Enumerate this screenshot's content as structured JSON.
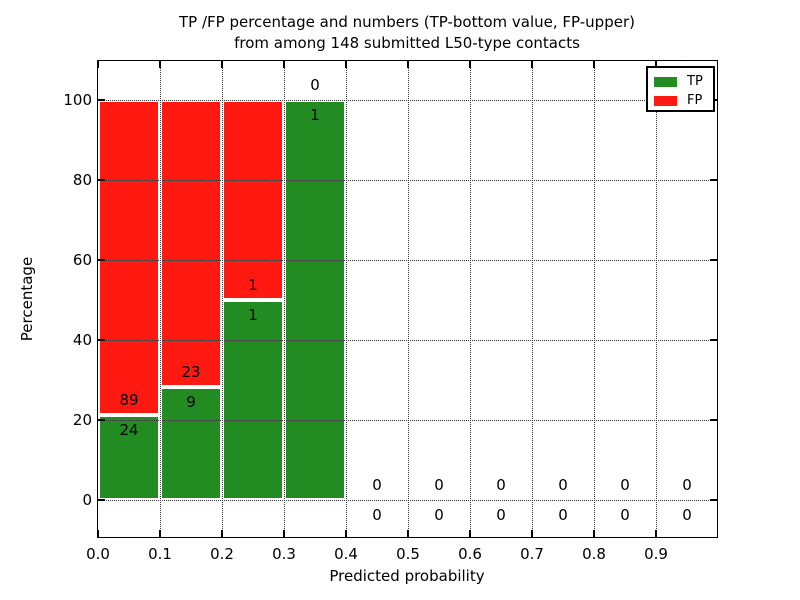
{
  "chart_data": {
    "type": "bar",
    "stacked": true,
    "title_line1": "TP /FP percentage and numbers (TP-bottom value, FP-upper)",
    "title_line2": "from among 148 submitted L50-type contacts",
    "xlabel": "Predicted probability",
    "ylabel": "Percentage",
    "total_submitted": 148,
    "xlim": [
      0.0,
      1.0
    ],
    "ylim": [
      -10,
      110
    ],
    "grid": "dotted",
    "legend_position": "upper right",
    "x_ticks": [
      "0.0",
      "0.1",
      "0.2",
      "0.3",
      "0.4",
      "0.5",
      "0.6",
      "0.7",
      "0.8",
      "0.9"
    ],
    "y_ticks": [
      0,
      20,
      40,
      60,
      80,
      100
    ],
    "bin_width": 0.1,
    "bins": [
      {
        "x_start": 0.0,
        "x_end": 0.1,
        "tp_count": 24,
        "fp_count": 89,
        "tp_pct": 21.24,
        "fp_pct": 78.76
      },
      {
        "x_start": 0.1,
        "x_end": 0.2,
        "tp_count": 9,
        "fp_count": 23,
        "tp_pct": 28.13,
        "fp_pct": 71.87
      },
      {
        "x_start": 0.2,
        "x_end": 0.3,
        "tp_count": 1,
        "fp_count": 1,
        "tp_pct": 50.0,
        "fp_pct": 50.0
      },
      {
        "x_start": 0.3,
        "x_end": 0.4,
        "tp_count": 1,
        "fp_count": 0,
        "tp_pct": 100.0,
        "fp_pct": 0.0
      },
      {
        "x_start": 0.4,
        "x_end": 0.5,
        "tp_count": 0,
        "fp_count": 0,
        "tp_pct": 0.0,
        "fp_pct": 0.0
      },
      {
        "x_start": 0.5,
        "x_end": 0.6,
        "tp_count": 0,
        "fp_count": 0,
        "tp_pct": 0.0,
        "fp_pct": 0.0
      },
      {
        "x_start": 0.6,
        "x_end": 0.7,
        "tp_count": 0,
        "fp_count": 0,
        "tp_pct": 0.0,
        "fp_pct": 0.0
      },
      {
        "x_start": 0.7,
        "x_end": 0.8,
        "tp_count": 0,
        "fp_count": 0,
        "tp_pct": 0.0,
        "fp_pct": 0.0
      },
      {
        "x_start": 0.8,
        "x_end": 0.9,
        "tp_count": 0,
        "fp_count": 0,
        "tp_pct": 0.0,
        "fp_pct": 0.0
      },
      {
        "x_start": 0.9,
        "x_end": 1.0,
        "tp_count": 0,
        "fp_count": 0,
        "tp_pct": 0.0,
        "fp_pct": 0.0
      }
    ],
    "legend": [
      {
        "label": "TP",
        "color": "#228b22"
      },
      {
        "label": "FP",
        "color": "#ff1911"
      }
    ],
    "colors": {
      "tp_green": "#228b22",
      "fp_red": "#ff1911",
      "grid": "#333333",
      "text": "#000000",
      "background": "#ffffff"
    }
  }
}
